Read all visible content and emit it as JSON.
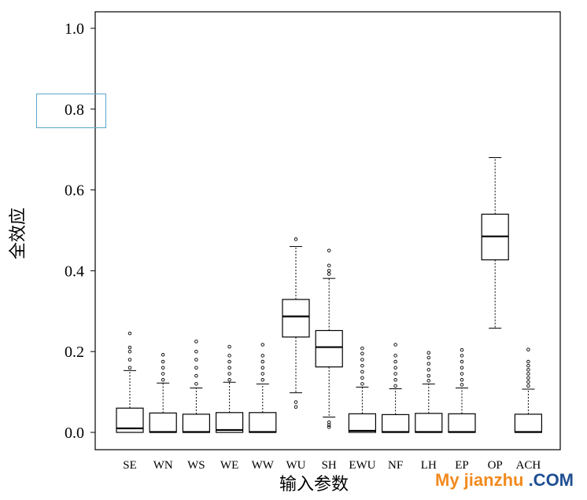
{
  "chart_data": {
    "type": "box",
    "title": "",
    "xlabel": "输入参数",
    "ylabel": "全效应",
    "ylim": [
      -0.04,
      1.04
    ],
    "yticks": [
      "0.0",
      "0.2",
      "0.4",
      "0.6",
      "0.8",
      "1.0"
    ],
    "highlighted_tick": "0.8",
    "categories": [
      "SE",
      "WN",
      "WS",
      "WE",
      "WW",
      "WU",
      "SH",
      "EWU",
      "NF",
      "LH",
      "EP",
      "OP",
      "ACH"
    ],
    "boxes": [
      {
        "label": "SE",
        "whisker_low": 0.0,
        "q1": 0.0,
        "median": 0.01,
        "q3": 0.06,
        "whisker_high": 0.153,
        "outliers_high": [
          0.16,
          0.18,
          0.2,
          0.21,
          0.245
        ],
        "outliers_low": []
      },
      {
        "label": "WN",
        "whisker_low": 0.0,
        "q1": 0.0,
        "median": 0.001,
        "q3": 0.048,
        "whisker_high": 0.122,
        "outliers_high": [
          0.13,
          0.145,
          0.16,
          0.175,
          0.192
        ],
        "outliers_low": []
      },
      {
        "label": "WS",
        "whisker_low": 0.0,
        "q1": 0.0,
        "median": 0.001,
        "q3": 0.045,
        "whisker_high": 0.11,
        "outliers_high": [
          0.12,
          0.14,
          0.16,
          0.18,
          0.2,
          0.225
        ],
        "outliers_low": []
      },
      {
        "label": "WE",
        "whisker_low": 0.0,
        "q1": 0.0,
        "median": 0.006,
        "q3": 0.049,
        "whisker_high": 0.124,
        "outliers_high": [
          0.13,
          0.145,
          0.16,
          0.175,
          0.19,
          0.212
        ],
        "outliers_low": []
      },
      {
        "label": "WW",
        "whisker_low": 0.0,
        "q1": 0.0,
        "median": 0.001,
        "q3": 0.049,
        "whisker_high": 0.12,
        "outliers_high": [
          0.13,
          0.145,
          0.16,
          0.175,
          0.19,
          0.217
        ],
        "outliers_low": []
      },
      {
        "label": "WU",
        "whisker_low": 0.098,
        "q1": 0.236,
        "median": 0.287,
        "q3": 0.329,
        "whisker_high": 0.46,
        "outliers_high": [
          0.478
        ],
        "outliers_low": [
          0.075,
          0.063
        ]
      },
      {
        "label": "SH",
        "whisker_low": 0.038,
        "q1": 0.162,
        "median": 0.211,
        "q3": 0.252,
        "whisker_high": 0.381,
        "outliers_high": [
          0.392,
          0.4,
          0.413,
          0.45
        ],
        "outliers_low": [
          0.025,
          0.018,
          0.013
        ]
      },
      {
        "label": "EWU",
        "whisker_low": 0.0,
        "q1": 0.0,
        "median": 0.004,
        "q3": 0.046,
        "whisker_high": 0.112,
        "outliers_high": [
          0.12,
          0.135,
          0.15,
          0.165,
          0.18,
          0.195,
          0.208
        ],
        "outliers_low": []
      },
      {
        "label": "NF",
        "whisker_low": 0.0,
        "q1": 0.0,
        "median": 0.001,
        "q3": 0.044,
        "whisker_high": 0.108,
        "outliers_high": [
          0.115,
          0.13,
          0.145,
          0.16,
          0.175,
          0.19,
          0.217
        ],
        "outliers_low": []
      },
      {
        "label": "LH",
        "whisker_low": 0.0,
        "q1": 0.0,
        "median": 0.001,
        "q3": 0.047,
        "whisker_high": 0.12,
        "outliers_high": [
          0.128,
          0.14,
          0.155,
          0.17,
          0.185,
          0.197
        ],
        "outliers_low": []
      },
      {
        "label": "EP",
        "whisker_low": 0.0,
        "q1": 0.0,
        "median": 0.001,
        "q3": 0.046,
        "whisker_high": 0.11,
        "outliers_high": [
          0.118,
          0.13,
          0.145,
          0.16,
          0.175,
          0.19,
          0.204
        ],
        "outliers_low": []
      },
      {
        "label": "OP",
        "whisker_low": 0.258,
        "q1": 0.427,
        "median": 0.485,
        "q3": 0.54,
        "whisker_high": 0.68,
        "outliers_high": [],
        "outliers_low": []
      },
      {
        "label": "ACH",
        "whisker_low": 0.0,
        "q1": 0.0,
        "median": 0.001,
        "q3": 0.045,
        "whisker_high": 0.107,
        "outliers_high": [
          0.115,
          0.125,
          0.135,
          0.145,
          0.155,
          0.165,
          0.175,
          0.205
        ],
        "outliers_low": []
      }
    ]
  },
  "watermark": {
    "part_a": "My jianzhu",
    "part_b": " .COM",
    "colors": {
      "part_a": "#f28a1e",
      "part_b": "#1f4f93"
    }
  },
  "colors": {
    "axis": "#000000",
    "highlight_box": "#5aa7c8"
  }
}
